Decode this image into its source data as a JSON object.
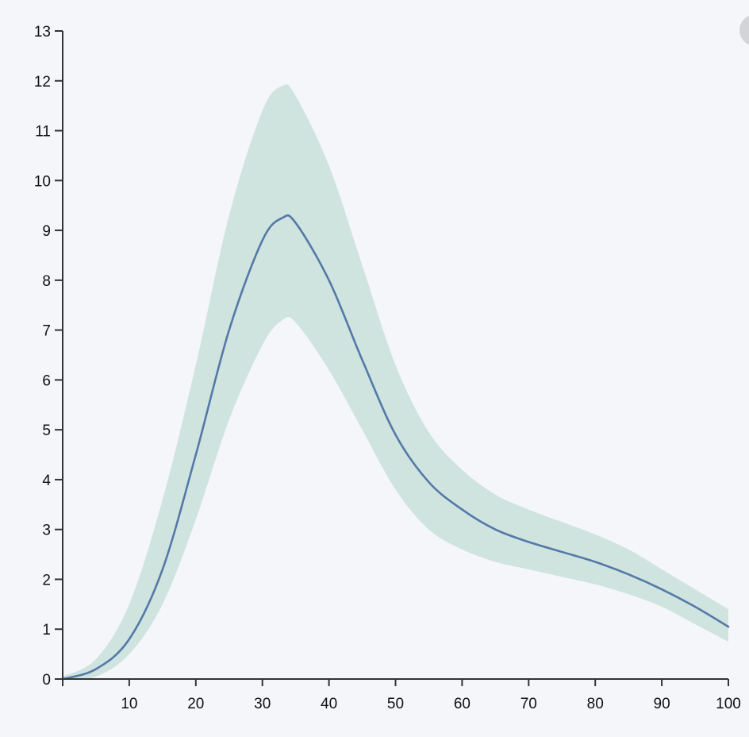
{
  "chart_data": {
    "type": "area",
    "title": "",
    "xlabel": "",
    "ylabel": "",
    "xlim": [
      0,
      100
    ],
    "ylim": [
      0,
      13
    ],
    "grid": false,
    "x_ticks": [
      10,
      20,
      30,
      40,
      50,
      60,
      70,
      80,
      90,
      100
    ],
    "y_ticks": [
      0,
      1,
      2,
      3,
      4,
      5,
      6,
      7,
      8,
      9,
      10,
      11,
      12,
      13
    ],
    "x": [
      0,
      5,
      10,
      15,
      20,
      25,
      30,
      33,
      35,
      40,
      45,
      50,
      55,
      60,
      65,
      70,
      75,
      80,
      85,
      90,
      95,
      100
    ],
    "series": [
      {
        "role": "mean",
        "values": [
          0.0,
          0.2,
          0.8,
          2.2,
          4.5,
          7.0,
          8.8,
          9.25,
          9.15,
          8.0,
          6.4,
          4.9,
          3.95,
          3.4,
          3.0,
          2.75,
          2.55,
          2.35,
          2.1,
          1.8,
          1.45,
          1.05
        ]
      },
      {
        "role": "upper",
        "values": [
          0.05,
          0.4,
          1.5,
          3.6,
          6.3,
          9.3,
          11.4,
          11.9,
          11.7,
          10.3,
          8.3,
          6.3,
          4.95,
          4.2,
          3.7,
          3.4,
          3.15,
          2.9,
          2.6,
          2.2,
          1.8,
          1.4
        ]
      },
      {
        "role": "lower",
        "values": [
          0.0,
          0.05,
          0.5,
          1.5,
          3.2,
          5.2,
          6.7,
          7.2,
          7.15,
          6.2,
          5.0,
          3.8,
          3.0,
          2.6,
          2.35,
          2.2,
          2.05,
          1.9,
          1.7,
          1.45,
          1.1,
          0.75
        ]
      }
    ],
    "colors": {
      "line": "#5479a8",
      "band": "#cfe3df",
      "axis": "#333333",
      "text": "#111111"
    }
  }
}
